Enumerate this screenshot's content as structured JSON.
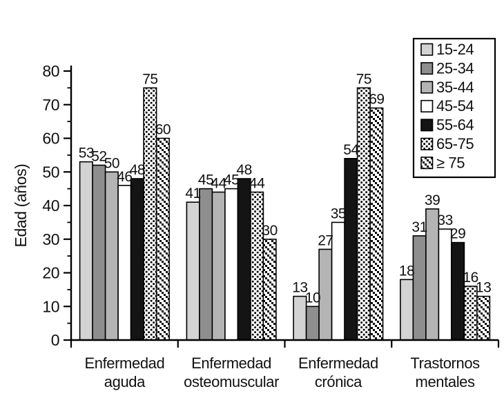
{
  "chart_data": {
    "type": "bar",
    "title": "",
    "xlabel": "",
    "ylabel": "Edad (años)",
    "ylim": [
      0,
      80
    ],
    "ytick_step": 10,
    "yminor_step": 5,
    "grid": false,
    "legend_position": "top-right",
    "bar_labels": true,
    "categories": [
      [
        "Enfermedad",
        "aguda"
      ],
      [
        "Enfermedad",
        "osteomuscular"
      ],
      [
        "Enfermedad",
        "crónica"
      ],
      [
        "Trastornos",
        "mentales"
      ]
    ],
    "series": [
      {
        "name": "15-24",
        "pattern": "solid",
        "fill": "#d3d3d3",
        "values": [
          53,
          41,
          13,
          18
        ]
      },
      {
        "name": "25-34",
        "pattern": "solid",
        "fill": "#8e8e8e",
        "values": [
          52,
          45,
          10,
          31
        ]
      },
      {
        "name": "35-44",
        "pattern": "solid",
        "fill": "#b4b4b4",
        "values": [
          50,
          44,
          27,
          39
        ]
      },
      {
        "name": "45-54",
        "pattern": "solid",
        "fill": "#ffffff",
        "values": [
          46,
          45,
          35,
          33
        ]
      },
      {
        "name": "55-64",
        "pattern": "solid",
        "fill": "#141414",
        "values": [
          48,
          48,
          54,
          29
        ]
      },
      {
        "name": "65-75",
        "pattern": "dots",
        "fill": "#ffffff",
        "values": [
          75,
          44,
          75,
          16
        ]
      },
      {
        "name": "≥ 75",
        "pattern": "hatch",
        "fill": "#ffffff",
        "values": [
          60,
          30,
          69,
          13
        ]
      }
    ],
    "colors": {
      "axis": "#000000",
      "bar_outline": "#000000",
      "pattern_foreground": "#000000",
      "pattern_background": "#ffffff"
    }
  }
}
